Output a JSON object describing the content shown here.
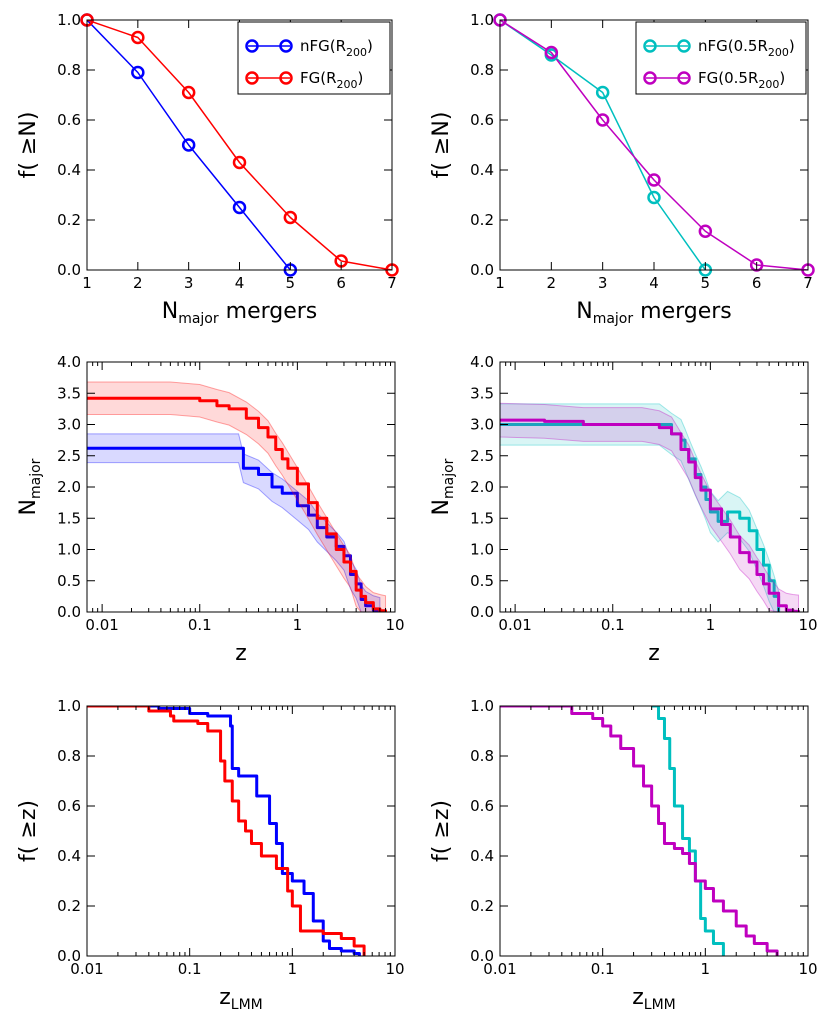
{
  "colors": {
    "blue": "#0000ff",
    "red": "#ff0000",
    "cyan": "#00bfbf",
    "magenta": "#bf00bf"
  },
  "chart_data": [
    {
      "id": "p1",
      "type": "line",
      "markers": true,
      "xscale": "linear",
      "xlim": [
        1,
        7
      ],
      "ylim": [
        0,
        1
      ],
      "xticks": [
        "1",
        "2",
        "3",
        "4",
        "5",
        "6",
        "7"
      ],
      "yticks": [
        "0.0",
        "0.2",
        "0.4",
        "0.6",
        "0.8",
        "1.0"
      ],
      "xlabel": {
        "main": "N",
        "sub": "major",
        "rest": " mergers"
      },
      "ylabel": {
        "main": "f( ≥N)"
      },
      "legend": "top-right",
      "series": [
        {
          "name": "nFG(R200)",
          "label": {
            "pre": "nFG(R",
            "sub": "200",
            "post": ")"
          },
          "color": "#0000ff",
          "x": [
            1,
            2,
            3,
            4,
            5
          ],
          "y": [
            1.0,
            0.79,
            0.5,
            0.25,
            0.0
          ]
        },
        {
          "name": "FG(R200)",
          "label": {
            "pre": "FG(R",
            "sub": "200",
            "post": ")"
          },
          "color": "#ff0000",
          "x": [
            1,
            2,
            3,
            4,
            5,
            6,
            7
          ],
          "y": [
            1.0,
            0.93,
            0.71,
            0.43,
            0.21,
            0.036,
            0.0
          ]
        }
      ]
    },
    {
      "id": "p2",
      "type": "line",
      "markers": true,
      "xscale": "linear",
      "xlim": [
        1,
        7
      ],
      "ylim": [
        0,
        1
      ],
      "xticks": [
        "1",
        "2",
        "3",
        "4",
        "5",
        "6",
        "7"
      ],
      "yticks": [
        "0.0",
        "0.2",
        "0.4",
        "0.6",
        "0.8",
        "1.0"
      ],
      "xlabel": {
        "main": "N",
        "sub": "major",
        "rest": " mergers"
      },
      "ylabel": {
        "main": "f( ≥N)"
      },
      "legend": "top-right",
      "series": [
        {
          "name": "nFG(0.5R200)",
          "label": {
            "pre": "nFG(0.5R",
            "sub": "200",
            "post": ")"
          },
          "color": "#00bfbf",
          "x": [
            1,
            2,
            3,
            4,
            5
          ],
          "y": [
            1.0,
            0.86,
            0.71,
            0.29,
            0.0
          ]
        },
        {
          "name": "FG(0.5R200)",
          "label": {
            "pre": "FG(0.5R",
            "sub": "200",
            "post": ")"
          },
          "color": "#bf00bf",
          "x": [
            1,
            2,
            3,
            4,
            5,
            6,
            7
          ],
          "y": [
            1.0,
            0.87,
            0.6,
            0.36,
            0.155,
            0.02,
            0.0
          ]
        }
      ]
    },
    {
      "id": "p3",
      "type": "area",
      "xscale": "log",
      "xlim": [
        0.007,
        10
      ],
      "ylim": [
        0,
        4
      ],
      "xticks": [
        "0.01",
        "0.1",
        "1",
        "10"
      ],
      "xtick_values": [
        0.01,
        0.1,
        1,
        10
      ],
      "yticks": [
        "0.0",
        "0.5",
        "1.0",
        "1.5",
        "2.0",
        "2.5",
        "3.0",
        "3.5",
        "4.0"
      ],
      "xlabel": {
        "main": "z"
      },
      "ylabel": {
        "main": "N",
        "sub": "major"
      },
      "series": [
        {
          "name": "nFG(R200)",
          "color": "#0000ff",
          "band": 0.23,
          "x": [
            0.007,
            0.25,
            0.28,
            0.4,
            0.55,
            0.7,
            1.0,
            1.3,
            1.6,
            2.0,
            2.5,
            3.0,
            3.5,
            4.0,
            4.5,
            5.0,
            6.0,
            7.0
          ],
          "y": [
            2.62,
            2.62,
            2.3,
            2.2,
            2.0,
            1.9,
            1.7,
            1.55,
            1.35,
            1.2,
            1.05,
            0.9,
            0.6,
            0.45,
            0.2,
            0.1,
            0.03,
            0.0
          ]
        },
        {
          "name": "FG(R200)",
          "color": "#ff0000",
          "band": 0.26,
          "x": [
            0.007,
            0.05,
            0.1,
            0.15,
            0.2,
            0.3,
            0.4,
            0.5,
            0.6,
            0.7,
            0.8,
            1.0,
            1.3,
            1.6,
            2.0,
            2.5,
            3.0,
            3.5,
            4.0,
            4.5,
            5.0,
            6.0,
            7.0,
            8.0
          ],
          "y": [
            3.42,
            3.42,
            3.38,
            3.3,
            3.25,
            3.1,
            2.95,
            2.8,
            2.6,
            2.45,
            2.3,
            2.05,
            1.75,
            1.5,
            1.25,
            1.0,
            0.8,
            0.65,
            0.35,
            0.25,
            0.15,
            0.05,
            0.02,
            0.0
          ]
        }
      ]
    },
    {
      "id": "p4",
      "type": "area",
      "xscale": "log",
      "xlim": [
        0.007,
        10
      ],
      "ylim": [
        0,
        4
      ],
      "xticks": [
        "0.01",
        "0.1",
        "1",
        "10"
      ],
      "xtick_values": [
        0.01,
        0.1,
        1,
        10
      ],
      "yticks": [
        "0.0",
        "0.5",
        "1.0",
        "1.5",
        "2.0",
        "2.5",
        "3.0",
        "3.5",
        "4.0"
      ],
      "xlabel": {
        "main": "z"
      },
      "ylabel": {
        "main": "N",
        "sub": "major"
      },
      "series": [
        {
          "name": "nFG(0.5R200)",
          "color": "#00bfbf",
          "band": 0.33,
          "x": [
            0.007,
            0.3,
            0.4,
            0.5,
            0.55,
            0.6,
            0.7,
            0.8,
            0.9,
            1.0,
            1.2,
            1.5,
            2.0,
            2.5,
            3.0,
            3.5,
            4.0,
            4.5,
            5.0
          ],
          "y": [
            3.0,
            3.0,
            2.85,
            2.75,
            2.6,
            2.45,
            2.2,
            2.0,
            1.8,
            1.6,
            1.45,
            1.6,
            1.5,
            1.3,
            1.0,
            0.75,
            0.5,
            0.25,
            0.0
          ]
        },
        {
          "name": "FG(0.5R200)",
          "color": "#bf00bf",
          "band": 0.27,
          "x": [
            0.007,
            0.02,
            0.05,
            0.1,
            0.2,
            0.3,
            0.4,
            0.5,
            0.6,
            0.7,
            0.8,
            1.0,
            1.3,
            1.6,
            2.0,
            2.5,
            3.0,
            3.5,
            4.0,
            5.0,
            6.0,
            7.0,
            8.0
          ],
          "y": [
            3.07,
            3.05,
            3.0,
            3.0,
            3.0,
            2.95,
            2.85,
            2.6,
            2.4,
            2.15,
            1.95,
            1.65,
            1.4,
            1.2,
            0.95,
            0.8,
            0.6,
            0.45,
            0.3,
            0.1,
            0.03,
            0.01,
            0.0
          ]
        }
      ]
    },
    {
      "id": "p5",
      "type": "line",
      "step": true,
      "xscale": "log",
      "xlim": [
        0.01,
        10
      ],
      "ylim": [
        0,
        1
      ],
      "xticks": [
        "0.01",
        "0.1",
        "1",
        "10"
      ],
      "xtick_values": [
        0.01,
        0.1,
        1,
        10
      ],
      "yticks": [
        "0.0",
        "0.2",
        "0.4",
        "0.6",
        "0.8",
        "1.0"
      ],
      "xlabel": {
        "main": "z",
        "sub": "LMM"
      },
      "ylabel": {
        "main": "f( ≥z)"
      },
      "series": [
        {
          "name": "nFG(R200)",
          "color": "#0000ff",
          "x": [
            0.01,
            0.05,
            0.1,
            0.15,
            0.25,
            0.26,
            0.3,
            0.45,
            0.6,
            0.7,
            0.8,
            1.0,
            1.3,
            1.6,
            2.0,
            2.3,
            3.0,
            4.0,
            4.5
          ],
          "y": [
            1.0,
            0.99,
            0.97,
            0.96,
            0.92,
            0.75,
            0.72,
            0.64,
            0.53,
            0.45,
            0.33,
            0.3,
            0.25,
            0.14,
            0.06,
            0.03,
            0.02,
            0.01,
            0.0
          ]
        },
        {
          "name": "FG(R200)",
          "color": "#ff0000",
          "x": [
            0.01,
            0.04,
            0.065,
            0.07,
            0.12,
            0.15,
            0.2,
            0.22,
            0.26,
            0.3,
            0.35,
            0.4,
            0.5,
            0.7,
            0.9,
            1.0,
            1.2,
            2.0,
            3.0,
            4.0,
            5.0
          ],
          "y": [
            1.0,
            0.98,
            0.96,
            0.94,
            0.93,
            0.9,
            0.78,
            0.7,
            0.62,
            0.54,
            0.5,
            0.45,
            0.4,
            0.35,
            0.26,
            0.2,
            0.1,
            0.09,
            0.07,
            0.04,
            0.0
          ]
        }
      ]
    },
    {
      "id": "p6",
      "type": "line",
      "step": true,
      "xscale": "log",
      "xlim": [
        0.01,
        10
      ],
      "ylim": [
        0,
        1
      ],
      "xticks": [
        "0.01",
        "0.1",
        "1",
        "10"
      ],
      "xtick_values": [
        0.01,
        0.1,
        1,
        10
      ],
      "yticks": [
        "0.0",
        "0.2",
        "0.4",
        "0.6",
        "0.8",
        "1.0"
      ],
      "xlabel": {
        "main": "z",
        "sub": "LMM"
      },
      "ylabel": {
        "main": "f( ≥z)"
      },
      "series": [
        {
          "name": "nFG(0.5R200)",
          "color": "#00bfbf",
          "x": [
            0.3,
            0.35,
            0.4,
            0.45,
            0.5,
            0.6,
            0.7,
            0.8,
            0.9,
            1.0,
            1.2,
            1.5
          ],
          "y": [
            1.0,
            0.95,
            0.87,
            0.75,
            0.6,
            0.47,
            0.42,
            0.3,
            0.15,
            0.1,
            0.05,
            0.0
          ]
        },
        {
          "name": "FG(0.5R200)",
          "color": "#bf00bf",
          "x": [
            0.01,
            0.05,
            0.08,
            0.1,
            0.12,
            0.15,
            0.2,
            0.25,
            0.3,
            0.35,
            0.4,
            0.5,
            0.6,
            0.7,
            0.8,
            1.0,
            1.2,
            1.5,
            2.0,
            2.5,
            3.0,
            4.0,
            5.0
          ],
          "y": [
            1.0,
            0.97,
            0.95,
            0.92,
            0.88,
            0.83,
            0.76,
            0.68,
            0.6,
            0.53,
            0.45,
            0.43,
            0.41,
            0.37,
            0.3,
            0.27,
            0.22,
            0.18,
            0.12,
            0.08,
            0.05,
            0.02,
            0.0
          ]
        }
      ]
    }
  ]
}
